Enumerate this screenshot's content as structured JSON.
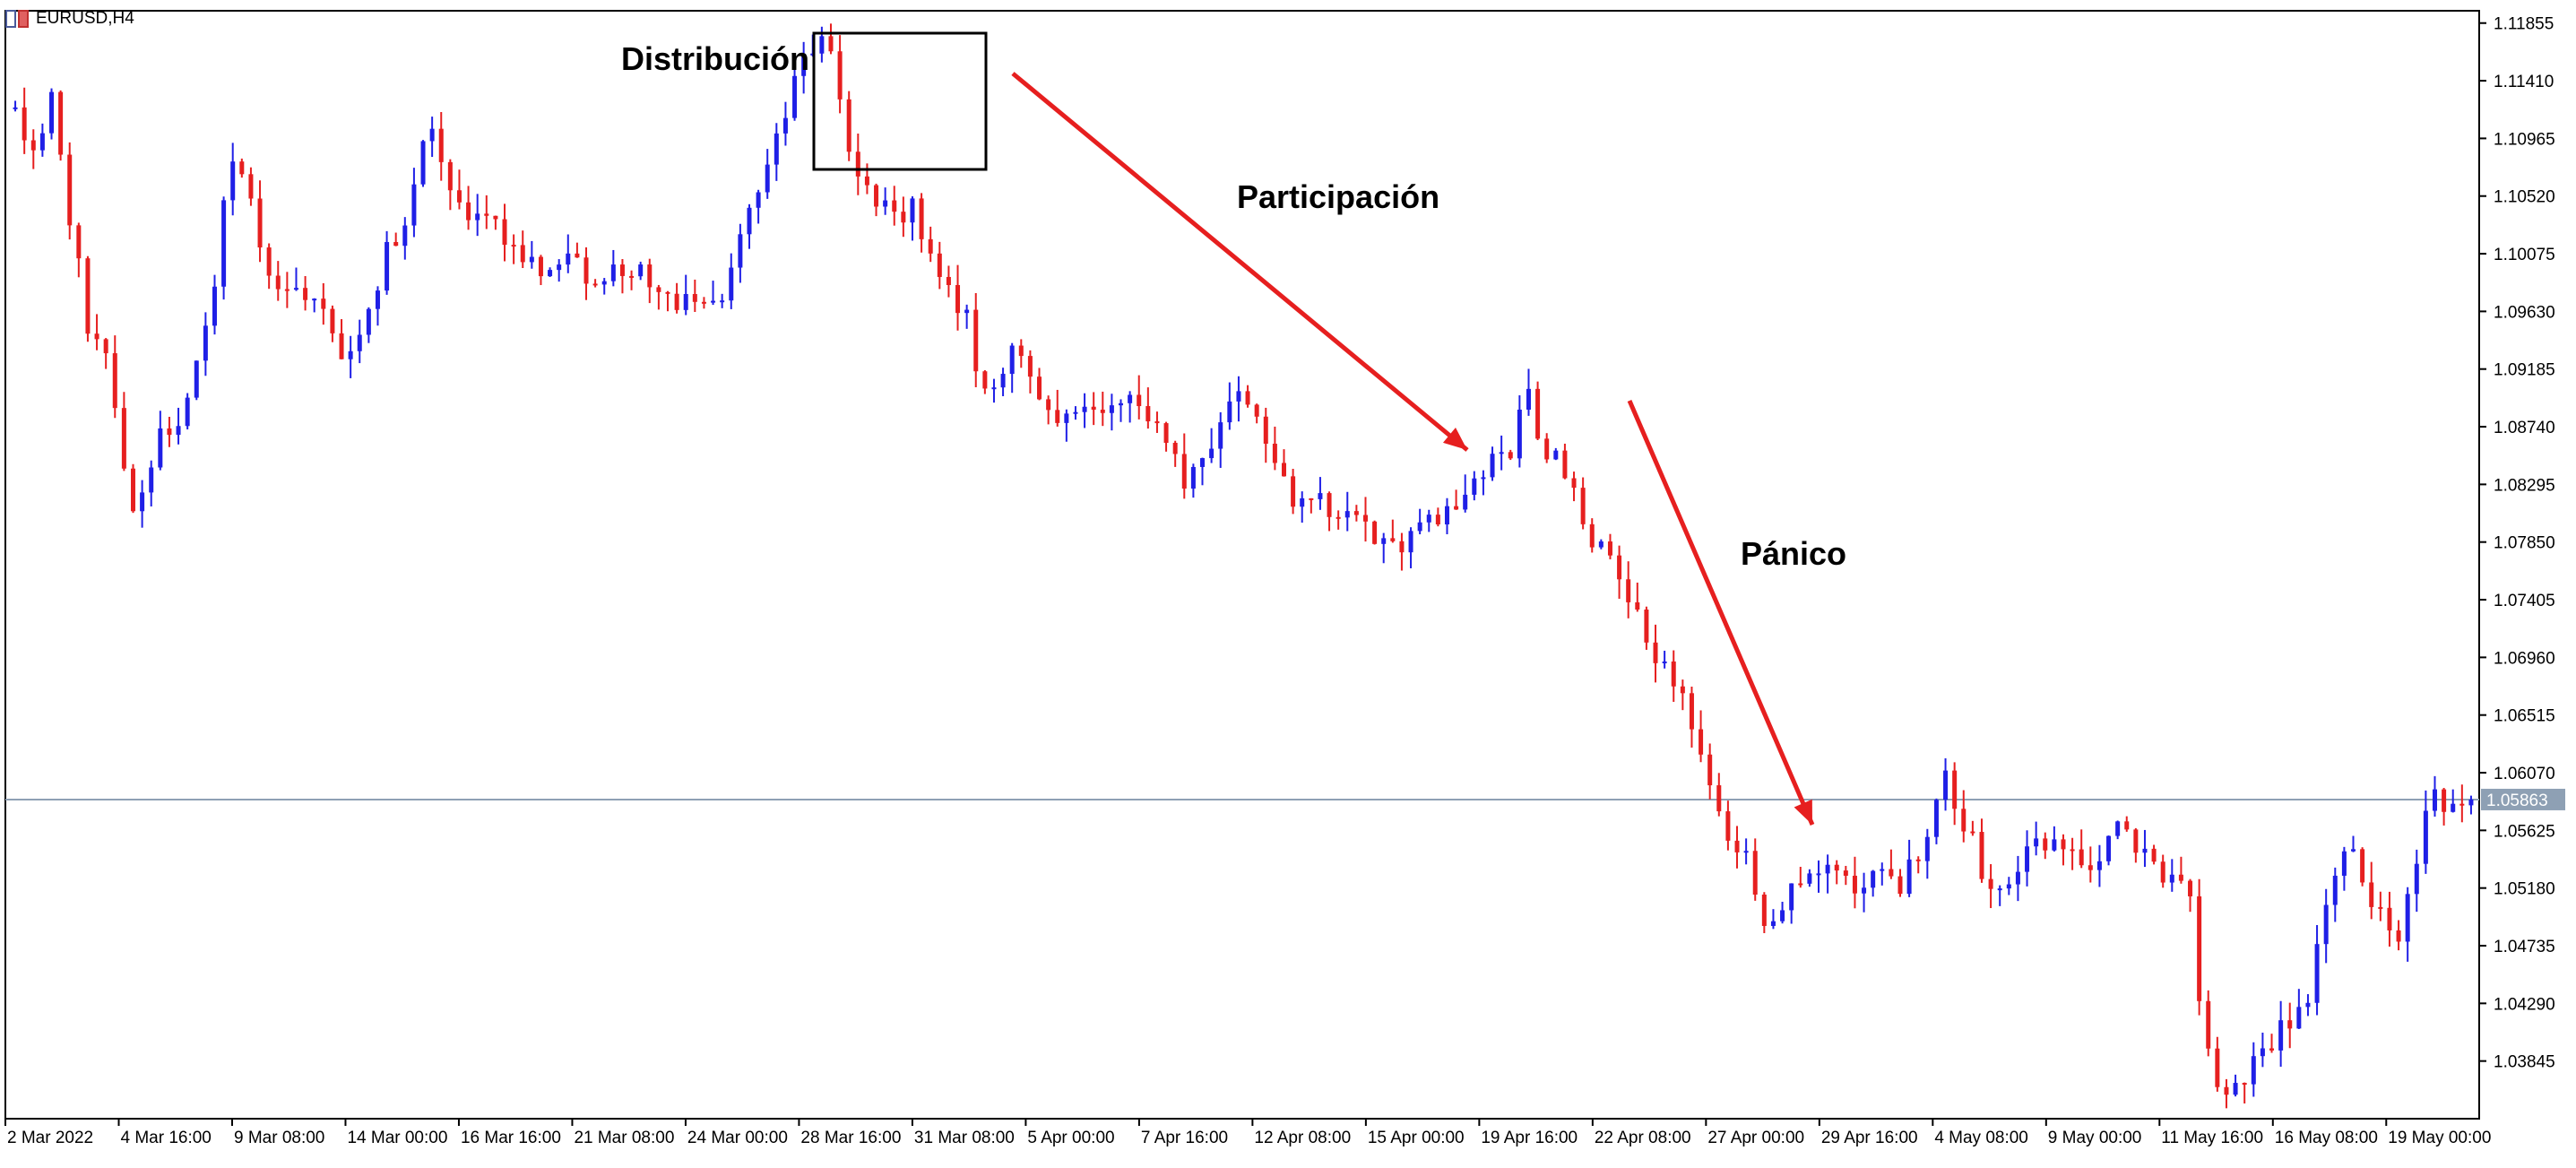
{
  "window": {
    "symbol_label": "EURUSD,H4"
  },
  "annotations": {
    "distribucion": "Distribución",
    "participacion": "Participación",
    "panico": "Pánico"
  },
  "price_marker": {
    "value": 1.05863,
    "label": "1.05863"
  },
  "colors": {
    "bull": "#1f1fe6",
    "bear": "#e61f1f",
    "arrow": "#e61f1f",
    "axis": "#000000",
    "price_line": "#8ea0b4",
    "price_label_bg": "#8ea0b4"
  },
  "chart_data": {
    "type": "candlestick",
    "symbol": "EURUSD",
    "timeframe": "H4",
    "ylim": [
      1.034,
      1.1195
    ],
    "y_ticks": [
      "1.11855",
      "1.11410",
      "1.10965",
      "1.10520",
      "1.10075",
      "1.09630",
      "1.09185",
      "1.08740",
      "1.08295",
      "1.07850",
      "1.07405",
      "1.06960",
      "1.06515",
      "1.06070",
      "1.05625",
      "1.05180",
      "1.04735",
      "1.04290",
      "1.03845"
    ],
    "x_ticks": [
      "2 Mar 2022",
      "4 Mar 16:00",
      "9 Mar 08:00",
      "14 Mar 00:00",
      "16 Mar 16:00",
      "21 Mar 08:00",
      "24 Mar 00:00",
      "28 Mar 16:00",
      "31 Mar 08:00",
      "5 Apr 00:00",
      "7 Apr 16:00",
      "12 Apr 08:00",
      "15 Apr 00:00",
      "19 Apr 16:00",
      "22 Apr 08:00",
      "27 Apr 00:00",
      "29 Apr 16:00",
      "4 May 08:00",
      "9 May 00:00",
      "11 May 16:00",
      "16 May 08:00",
      "19 May 00:00"
    ],
    "candle_count": 272,
    "anchors": [
      [
        0,
        1.112
      ],
      [
        4,
        1.108
      ],
      [
        8,
        1.113
      ],
      [
        12,
        1.102
      ],
      [
        16,
        1.094
      ],
      [
        20,
        1.092
      ],
      [
        24,
        1.08
      ],
      [
        30,
        1.087
      ],
      [
        34,
        1.088
      ],
      [
        38,
        1.093
      ],
      [
        42,
        1.099
      ],
      [
        45,
        1.108
      ],
      [
        49,
        1.106
      ],
      [
        53,
        1.098
      ],
      [
        58,
        1.097
      ],
      [
        62,
        1.098
      ],
      [
        65,
        1.096
      ],
      [
        69,
        1.093
      ],
      [
        73,
        1.096
      ],
      [
        78,
        1.101
      ],
      [
        83,
        1.104
      ],
      [
        86,
        1.112
      ],
      [
        90,
        1.107
      ],
      [
        95,
        1.103
      ],
      [
        100,
        1.103
      ],
      [
        105,
        1.101
      ],
      [
        110,
        1.1
      ],
      [
        115,
        1.101
      ],
      [
        120,
        1.099
      ],
      [
        126,
        1.099
      ],
      [
        130,
        1.1
      ],
      [
        134,
        1.098
      ],
      [
        138,
        1.097
      ],
      [
        142,
        1.098
      ],
      [
        146,
        1.097
      ],
      [
        149,
        1.098
      ],
      [
        150,
        1.099
      ],
      [
        154,
        1.105
      ],
      [
        158,
        1.108
      ],
      [
        162,
        1.112
      ],
      [
        166,
        1.117
      ],
      [
        170,
        1.118
      ],
      [
        173,
        1.113
      ],
      [
        176,
        1.106
      ],
      [
        180,
        1.105
      ],
      [
        184,
        1.104
      ],
      [
        188,
        1.104
      ],
      [
        193,
        1.098
      ],
      [
        198,
        1.097
      ],
      [
        203,
        1.09
      ],
      [
        208,
        1.093
      ],
      [
        213,
        1.091
      ],
      [
        218,
        1.088
      ],
      [
        224,
        1.088
      ],
      [
        229,
        1.089
      ],
      [
        234,
        1.09
      ],
      [
        239,
        1.088
      ],
      [
        244,
        1.083
      ],
      [
        250,
        1.086
      ],
      [
        255,
        1.09
      ],
      [
        262,
        1.087
      ],
      [
        266,
        1.082
      ],
      [
        271,
        1.081
      ]
    ],
    "anchors_part2": [
      [
        272,
        1.082
      ],
      [
        276,
        1.081
      ],
      [
        281,
        1.08
      ],
      [
        286,
        1.078
      ],
      [
        292,
        1.079
      ],
      [
        298,
        1.08
      ],
      [
        303,
        1.082
      ],
      [
        308,
        1.084
      ],
      [
        313,
        1.085
      ],
      [
        316,
        1.092
      ],
      [
        319,
        1.085
      ],
      [
        322,
        1.085
      ],
      [
        326,
        1.082
      ],
      [
        330,
        1.079
      ],
      [
        335,
        1.076
      ],
      [
        340,
        1.072
      ],
      [
        345,
        1.069
      ],
      [
        350,
        1.065
      ],
      [
        354,
        1.061
      ],
      [
        358,
        1.056
      ],
      [
        362,
        1.054
      ],
      [
        366,
        1.049
      ],
      [
        370,
        1.051
      ],
      [
        375,
        1.053
      ],
      [
        380,
        1.053
      ],
      [
        385,
        1.051
      ],
      [
        390,
        1.054
      ],
      [
        395,
        1.052
      ],
      [
        400,
        1.056
      ],
      [
        404,
        1.06
      ],
      [
        408,
        1.057
      ],
      [
        412,
        1.053
      ],
      [
        416,
        1.052
      ],
      [
        421,
        1.055
      ],
      [
        426,
        1.055
      ],
      [
        430,
        1.056
      ],
      [
        435,
        1.053
      ],
      [
        440,
        1.056
      ],
      [
        445,
        1.054
      ],
      [
        450,
        1.053
      ],
      [
        455,
        1.051
      ],
      [
        458,
        1.04
      ],
      [
        462,
        1.036
      ],
      [
        466,
        1.037
      ],
      [
        470,
        1.039
      ],
      [
        475,
        1.041
      ],
      [
        480,
        1.044
      ],
      [
        484,
        1.052
      ],
      [
        489,
        1.055
      ],
      [
        494,
        1.05
      ],
      [
        498,
        1.047
      ],
      [
        502,
        1.053
      ],
      [
        506,
        1.059
      ],
      [
        510,
        1.058
      ],
      [
        514,
        1.058
      ]
    ],
    "last_close": 1.05863
  }
}
